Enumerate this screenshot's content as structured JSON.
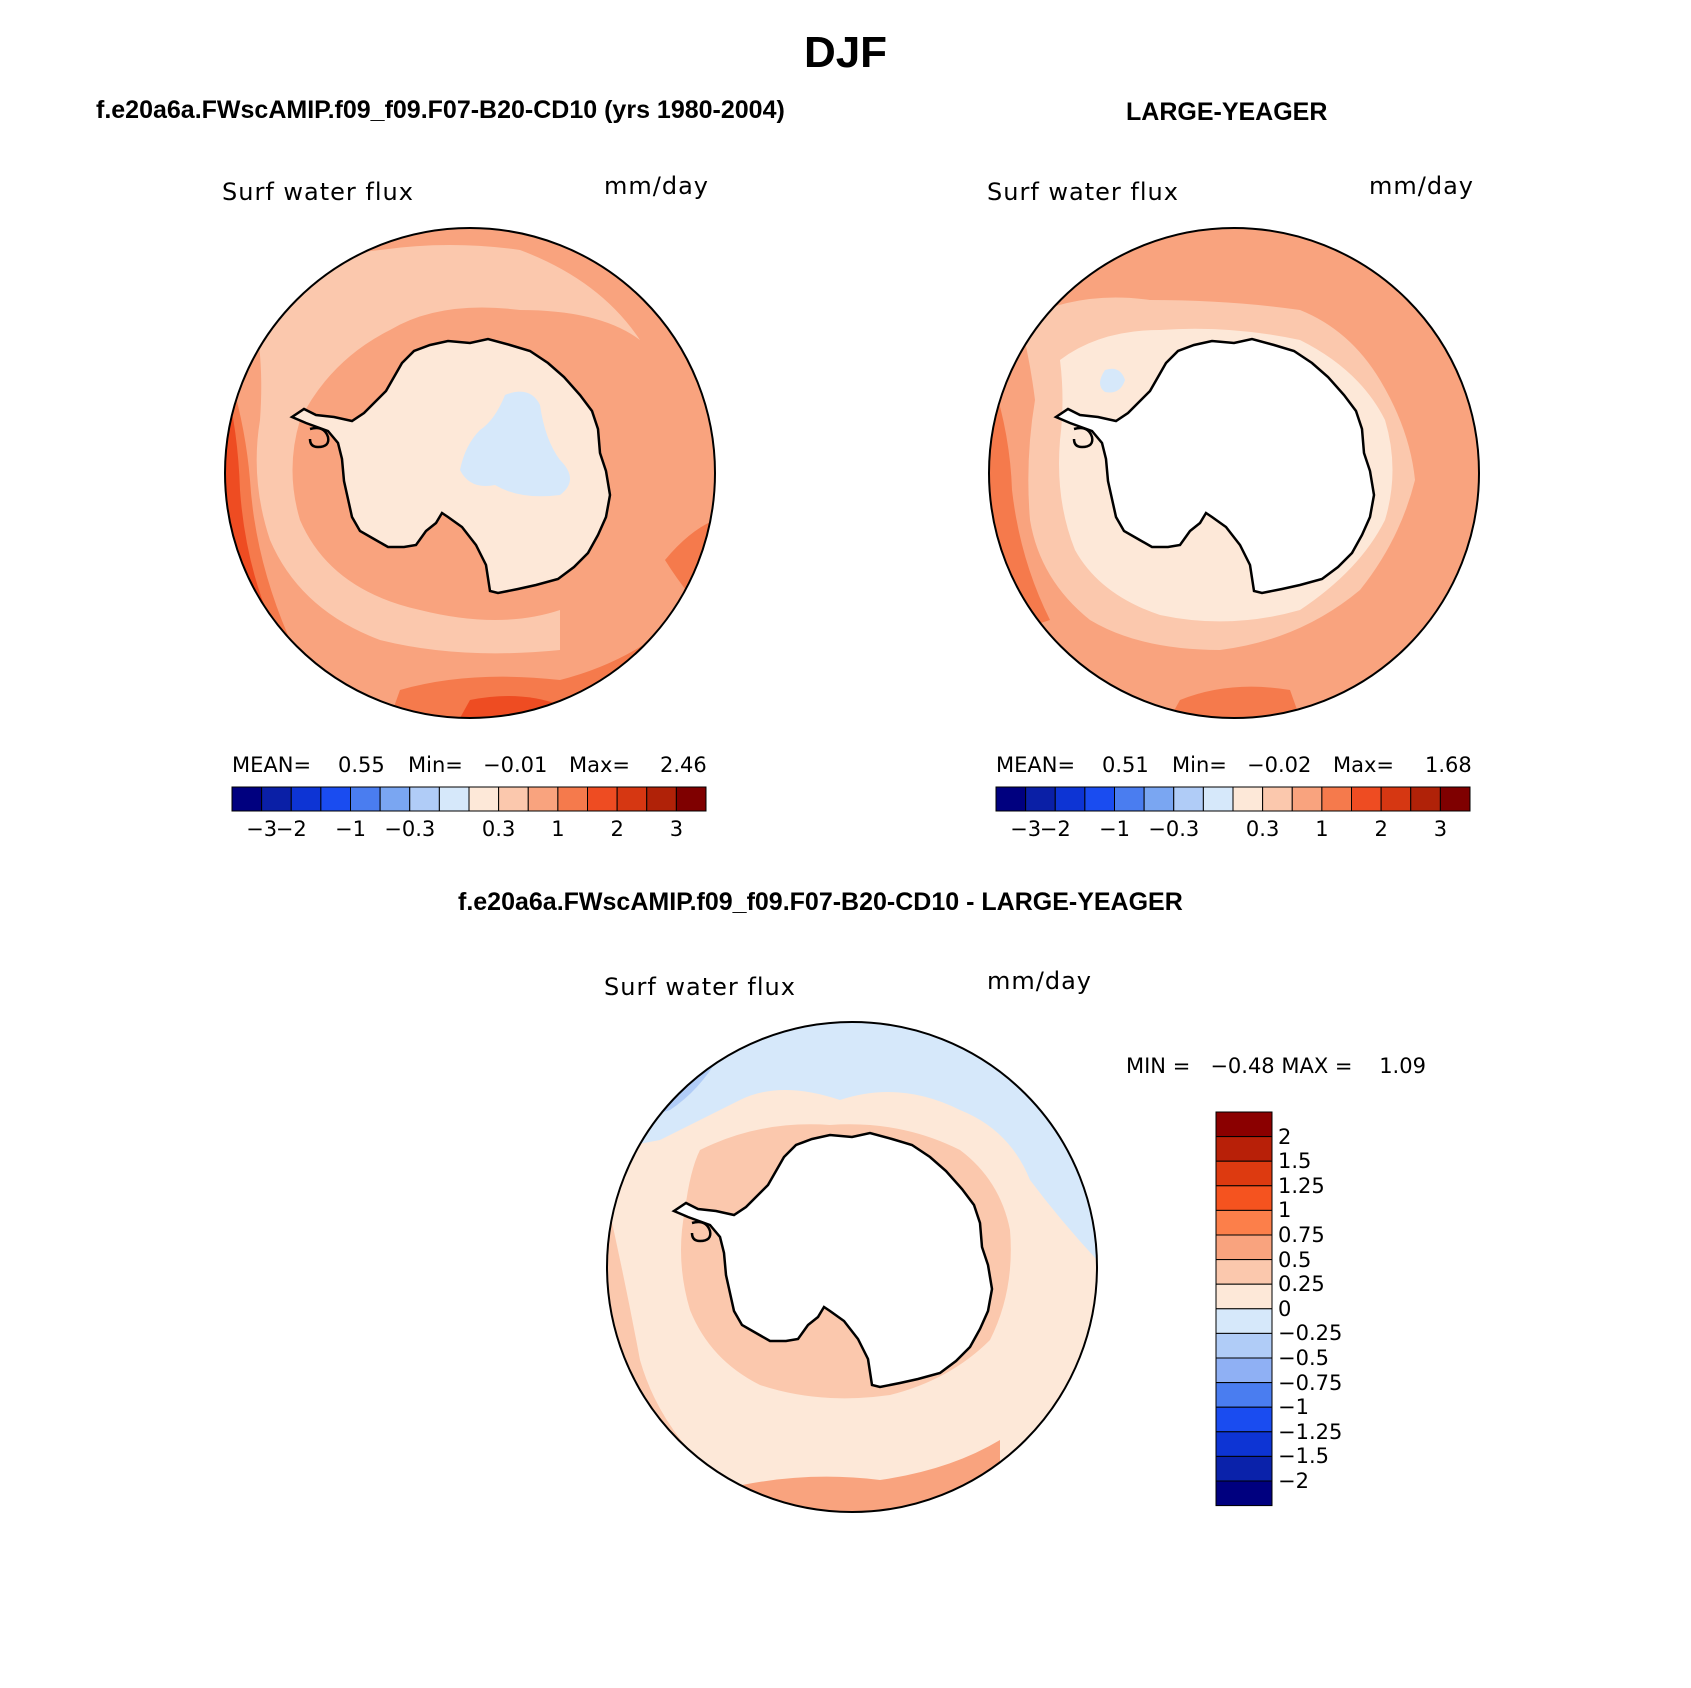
{
  "figure": {
    "title": "DJF"
  },
  "panels": [
    {
      "title": "f.e20a6a.FWscAMIP.f09_f09.F07-B20-CD10 (yrs 1980-2004)",
      "variable": "Surf water flux",
      "units": "mm/day",
      "stats": {
        "mean_label": "MEAN=",
        "mean": "0.55",
        "min_label": "Min=",
        "min": "−0.01",
        "max_label": "Max=",
        "max": "2.46"
      }
    },
    {
      "title": "LARGE-YEAGER",
      "variable": "Surf water flux",
      "units": "mm/day",
      "stats": {
        "mean_label": "MEAN=",
        "mean": "0.51",
        "min_label": "Min=",
        "min": "−0.02",
        "max_label": "Max=",
        "max": "1.68"
      }
    },
    {
      "title": "f.e20a6a.FWscAMIP.f09_f09.F07-B20-CD10 - LARGE-YEAGER",
      "variable": "Surf water flux",
      "units": "mm/day",
      "minmax": "MIN =   −0.48 MAX =    1.09"
    }
  ],
  "colorbar_abs": {
    "colors": [
      "#00007f",
      "#0a1fa6",
      "#0d34d4",
      "#1a4cf0",
      "#4a7df0",
      "#7aa6f2",
      "#b0ccf7",
      "#d6e8fa",
      "#fde8d8",
      "#fbc8ad",
      "#f9a37e",
      "#f57a4c",
      "#ee4c22",
      "#d63712",
      "#b02208",
      "#7f0000"
    ],
    "ticks": [
      "−3",
      "−2",
      "−1",
      "−0.3",
      "0.3",
      "1",
      "2",
      "3"
    ]
  },
  "colorbar_diff": {
    "colors_top_to_bottom": [
      "#8b0000",
      "#b82008",
      "#dd3a10",
      "#f5531f",
      "#fc7f4a",
      "#f9a37e",
      "#fbc8ad",
      "#fde8d8",
      "#d6e8fa",
      "#b0ccf7",
      "#8fb0f4",
      "#4a7df0",
      "#1a4cf0",
      "#0d34d4",
      "#0a22aa",
      "#00007f"
    ],
    "ticks": [
      "2",
      "1.5",
      "1.25",
      "1",
      "0.75",
      "0.5",
      "0.25",
      "0",
      "−0.25",
      "−0.5",
      "−0.75",
      "−1",
      "−1.25",
      "−1.5",
      "−2"
    ]
  }
}
